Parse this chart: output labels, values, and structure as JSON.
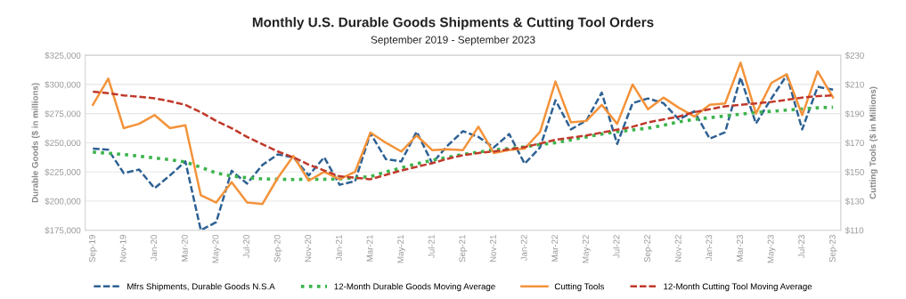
{
  "chart_data": {
    "type": "line",
    "title": "Monthly U.S. Durable Goods Shipments & Cutting Tool Orders",
    "subtitle": "September 2019 - September 2023",
    "ylabel": "Durable Goods ($ in millions)",
    "y2label": "Cutting Tools ($ in Millions)",
    "categories": [
      "Sep-19",
      null,
      "Nov-19",
      null,
      "Jan-20",
      null,
      "Mar-20",
      null,
      "May-20",
      null,
      "Jul-20",
      null,
      "Sep-20",
      null,
      "Nov-20",
      null,
      "Jan-21",
      null,
      "Mar-21",
      null,
      "May-21",
      null,
      "Jul-21",
      null,
      "Sep-21",
      null,
      "Nov-21",
      null,
      "Jan-22",
      null,
      "Mar-22",
      null,
      "May-22",
      null,
      "Jul-22",
      null,
      "Sep-22",
      null,
      "Nov-22",
      null,
      "Jan-23",
      null,
      "Mar-23",
      null,
      "May-23",
      null,
      "Jul-23",
      null,
      "Sep-23"
    ],
    "ylim": [
      175000,
      325000
    ],
    "yticks": [
      {
        "value": 175000,
        "label": "$175,000"
      },
      {
        "value": 200000,
        "label": "$200,000"
      },
      {
        "value": 225000,
        "label": "$225,000"
      },
      {
        "value": 250000,
        "label": "$250,000"
      },
      {
        "value": 275000,
        "label": "$275,000"
      },
      {
        "value": 300000,
        "label": "$300,000"
      },
      {
        "value": 325000,
        "label": "$325,000"
      }
    ],
    "y2lim": [
      110,
      230
    ],
    "y2ticks": [
      {
        "value": 110,
        "label": "$110"
      },
      {
        "value": 130,
        "label": "$130"
      },
      {
        "value": 150,
        "label": "$150"
      },
      {
        "value": 170,
        "label": "$170"
      },
      {
        "value": 190,
        "label": "$190"
      },
      {
        "value": 210,
        "label": "$210"
      },
      {
        "value": 230,
        "label": "$230"
      }
    ],
    "grid": "y",
    "legend": "bottom",
    "marker": "none",
    "series": [
      {
        "name": "Mfrs Shipments, Durable Goods N.S.A",
        "color": "#2e6193",
        "line_style": "dashed",
        "values": [
          245000,
          244000,
          224000,
          227000,
          211000,
          222000,
          234000,
          175000,
          182000,
          226000,
          215000,
          231000,
          240000,
          237500,
          222000,
          237500,
          214000,
          217000,
          258000,
          236000,
          234000,
          259500,
          232500,
          247500,
          260000,
          255000,
          246000,
          257500,
          232000,
          246000,
          286500,
          261500,
          269000,
          293000,
          249000,
          284000,
          288000,
          284000,
          270000,
          277000,
          253500,
          259000,
          306000,
          266500,
          288000,
          308000,
          261500,
          298000,
          295500
        ]
      },
      {
        "name": "12-Month Durable Goods Moving Average",
        "color": "#3cb44b",
        "line_style": "dotted",
        "values": [
          242000,
          241000,
          240000,
          238500,
          237000,
          235500,
          233500,
          229000,
          224000,
          221500,
          220000,
          219000,
          218700,
          218500,
          218700,
          218700,
          219000,
          220000,
          221000,
          225000,
          228500,
          232000,
          235000,
          237500,
          240000,
          242000,
          244000,
          245000,
          246500,
          248500,
          250000,
          252500,
          255000,
          257500,
          259500,
          261000,
          262500,
          265000,
          268000,
          270000,
          271500,
          273000,
          274500,
          276000,
          277000,
          278000,
          279000,
          280000,
          280500
        ]
      },
      {
        "name": "Cutting Tools",
        "color": "#f3933a",
        "line_style": "solid",
        "axis": "y2",
        "values": [
          196,
          214,
          180,
          183,
          189,
          180,
          182,
          134,
          129,
          143,
          129,
          128,
          146,
          161,
          144,
          150,
          145,
          150,
          177,
          170,
          164,
          175,
          165,
          165.5,
          165,
          181,
          163,
          165,
          166,
          177.5,
          212,
          184,
          185,
          196,
          183,
          210,
          193,
          201,
          194,
          188,
          196,
          197,
          225,
          190,
          211,
          217,
          189,
          219,
          201
        ]
      },
      {
        "name": "12-Month Cutting Tool Moving Average",
        "color": "#c0392b",
        "line_style": "dashed",
        "axis": "y2",
        "values": [
          205,
          204,
          202.5,
          201.5,
          200.5,
          198.5,
          196,
          191,
          185,
          180,
          174,
          169,
          164,
          160,
          155,
          151,
          147,
          146,
          145,
          148,
          151,
          153.5,
          156,
          159,
          161.5,
          163,
          164,
          165.5,
          167,
          169.5,
          172,
          173.5,
          175,
          177,
          179,
          181,
          184,
          186,
          188,
          191,
          193,
          195,
          196,
          197,
          198,
          199.5,
          201,
          202,
          202.5
        ]
      }
    ]
  }
}
